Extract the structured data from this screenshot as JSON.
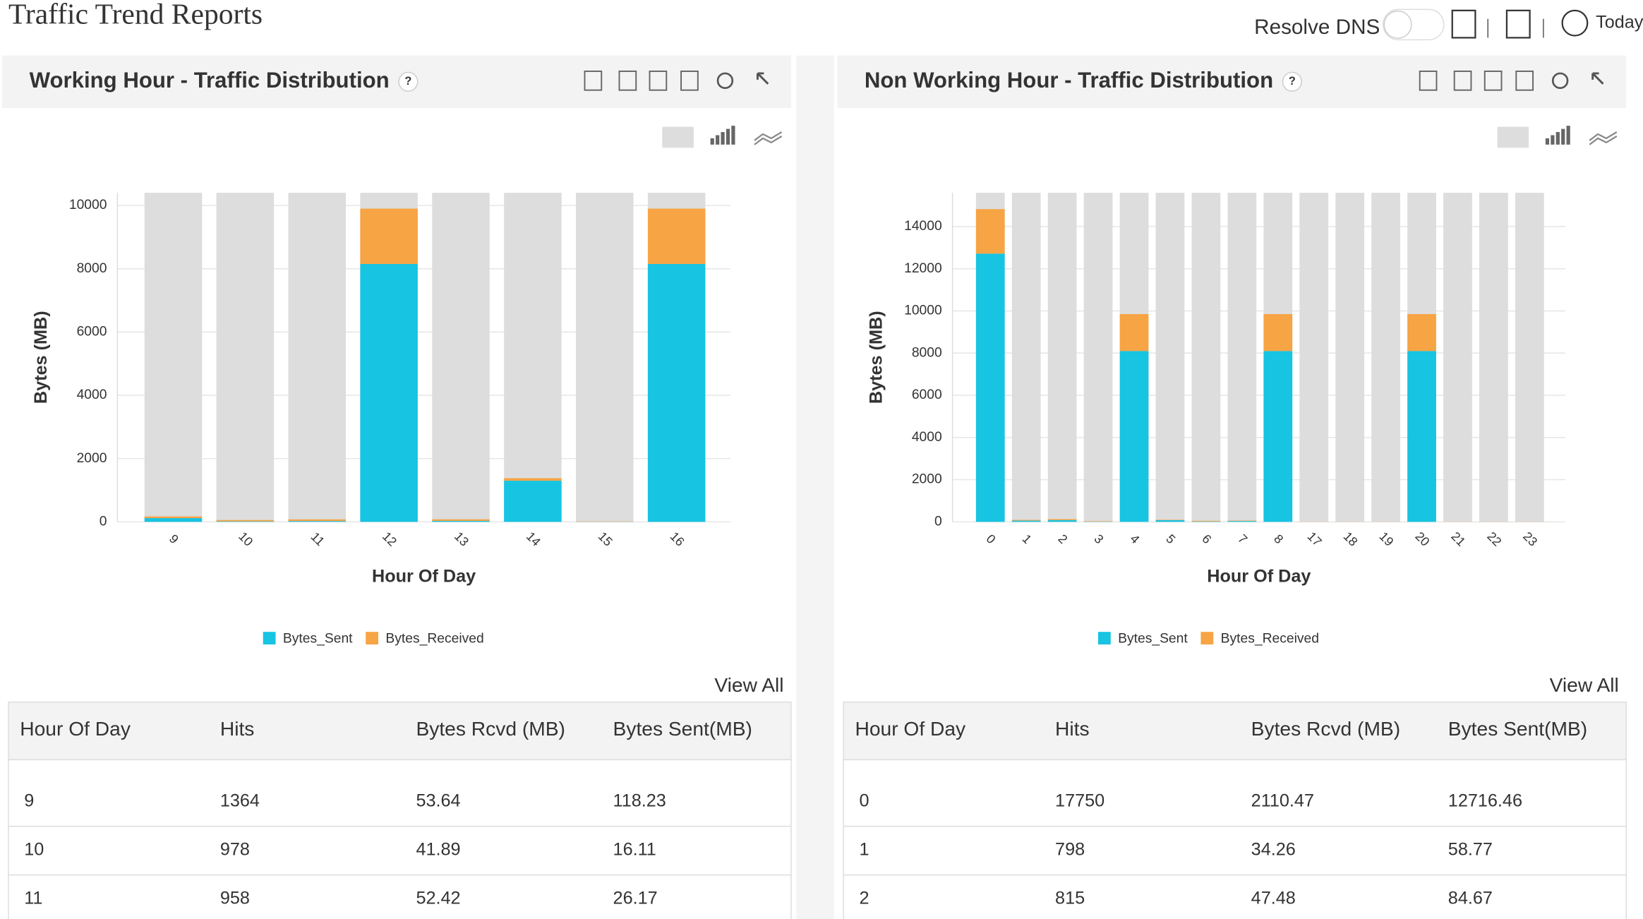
{
  "header": {
    "title": "Traffic Trend Reports",
    "resolve_dns": "Resolve DNS",
    "today": "Today"
  },
  "panels": [
    {
      "title": "Working Hour - Traffic Distribution",
      "help": "?",
      "view_all": "View All",
      "table": {
        "columns": [
          "Hour Of Day",
          "Hits",
          "Bytes Rcvd (MB)",
          "Bytes Sent(MB)"
        ],
        "rows": [
          [
            "9",
            "1364",
            "53.64",
            "118.23"
          ],
          [
            "10",
            "978",
            "41.89",
            "16.11"
          ],
          [
            "11",
            "958",
            "52.42",
            "26.17"
          ]
        ]
      }
    },
    {
      "title": "Non Working Hour - Traffic Distribution",
      "help": "?",
      "view_all": "View All",
      "table": {
        "columns": [
          "Hour Of Day",
          "Hits",
          "Bytes Rcvd (MB)",
          "Bytes Sent(MB)"
        ],
        "rows": [
          [
            "0",
            "17750",
            "2110.47",
            "12716.46"
          ],
          [
            "1",
            "798",
            "34.26",
            "58.77"
          ],
          [
            "2",
            "815",
            "47.48",
            "84.67"
          ]
        ]
      }
    }
  ],
  "chart_data": [
    {
      "type": "bar",
      "stacked": true,
      "y_label": "Bytes (MB)",
      "x_label": "Hour Of Day",
      "categories": [
        "9",
        "10",
        "11",
        "12",
        "13",
        "14",
        "15",
        "16"
      ],
      "series": [
        {
          "name": "Bytes_Sent",
          "color": "#17c4e2",
          "values": [
            118.23,
            16.11,
            26.17,
            8150,
            30,
            1300,
            5,
            8150
          ]
        },
        {
          "name": "Bytes_Received",
          "color": "#f7a444",
          "values": [
            53.64,
            41.89,
            52.42,
            1750,
            50,
            80,
            10,
            1750
          ]
        }
      ],
      "ylim": [
        0,
        10400
      ],
      "yticks": [
        0,
        2000,
        4000,
        6000,
        8000,
        10000
      ],
      "grid": true,
      "legend": "bottom"
    },
    {
      "type": "bar",
      "stacked": true,
      "y_label": "Bytes (MB)",
      "x_label": "Hour Of Day",
      "categories": [
        "0",
        "1",
        "2",
        "3",
        "4",
        "5",
        "6",
        "7",
        "8",
        "17",
        "18",
        "19",
        "20",
        "21",
        "22",
        "23"
      ],
      "series": [
        {
          "name": "Bytes_Sent",
          "color": "#17c4e2",
          "values": [
            12716.46,
            58.77,
            84.67,
            10,
            8100,
            80,
            20,
            40,
            8100,
            0,
            0,
            0,
            8100,
            0,
            0,
            0
          ]
        },
        {
          "name": "Bytes_Received",
          "color": "#f7a444",
          "values": [
            2110.47,
            34.26,
            47.48,
            20,
            1750,
            20,
            30,
            20,
            1750,
            5,
            5,
            5,
            1750,
            5,
            5,
            5
          ]
        }
      ],
      "ylim": [
        0,
        15600
      ],
      "yticks": [
        0,
        2000,
        4000,
        6000,
        8000,
        10000,
        12000,
        14000
      ],
      "grid": true,
      "legend": "bottom"
    }
  ]
}
